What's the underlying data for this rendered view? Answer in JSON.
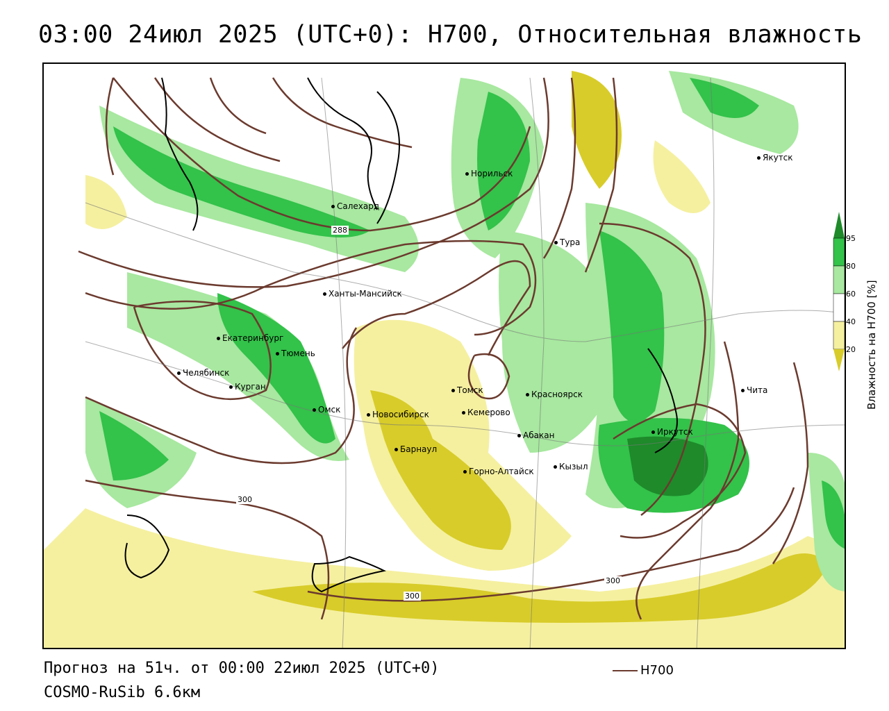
{
  "title": "03:00 24июл 2025 (UTC+0): H700, Относительная влажность",
  "footer": {
    "forecast": "Прогноз на 51ч. от 00:00 22июл 2025 (UTC+0)",
    "model": "COSMO-RuSib 6.6км"
  },
  "legend": {
    "line_label": "H700",
    "line_color": "#6b3a2e"
  },
  "colorbar": {
    "title": "Влажность на H700 [%]",
    "ticks": [
      "95",
      "80",
      "60",
      "40",
      "20"
    ],
    "colors": {
      "95+": "#1e8a2a",
      "80-95": "#33c24a",
      "60-80": "#a8e8a0",
      "40-60": "#ffffff",
      "20-40": "#f5f0a0",
      "0-20": "#d8cc2a"
    }
  },
  "contour_labels": [
    "288",
    "300",
    "300",
    "300"
  ],
  "cities": [
    {
      "name": "Якутск"
    },
    {
      "name": "Норильск"
    },
    {
      "name": "Салехард"
    },
    {
      "name": "Тура"
    },
    {
      "name": "Ханты-Мансийск"
    },
    {
      "name": "Екатеринбург"
    },
    {
      "name": "Тюмень"
    },
    {
      "name": "Челябинск"
    },
    {
      "name": "Курган"
    },
    {
      "name": "Омск"
    },
    {
      "name": "Томск"
    },
    {
      "name": "Красноярск"
    },
    {
      "name": "Новосибирск"
    },
    {
      "name": "Кемерово"
    },
    {
      "name": "Абакан"
    },
    {
      "name": "Барнаул"
    },
    {
      "name": "Горно-Алтайск"
    },
    {
      "name": "Кызыл"
    },
    {
      "name": "Иркутск"
    },
    {
      "name": "Чита"
    }
  ]
}
